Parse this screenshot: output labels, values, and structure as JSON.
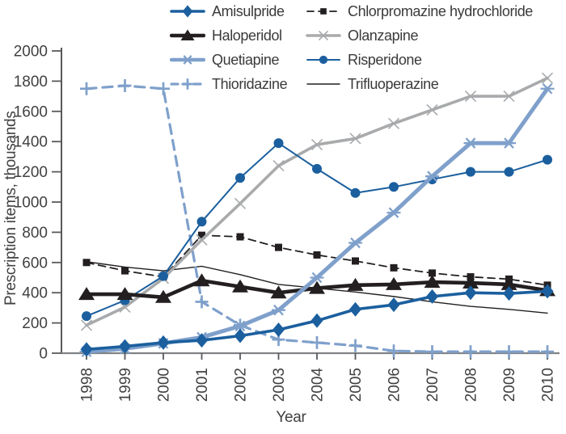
{
  "chart_data": {
    "type": "line",
    "title": "",
    "ylabel": "Prescription items, thousands",
    "xlabel": "Year",
    "x": [
      1998,
      1999,
      2000,
      2001,
      2002,
      2003,
      2004,
      2005,
      2006,
      2007,
      2008,
      2009,
      2010
    ],
    "ylim": [
      0,
      2000
    ],
    "ytick_step": 200,
    "grid": false,
    "legend_position": "top, two columns, overlapping plot",
    "axis_color": "#58595b",
    "tick_text_color": "#414042",
    "series": [
      {
        "name": "Amisulpride",
        "values": [
          25,
          45,
          70,
          85,
          115,
          155,
          215,
          290,
          320,
          375,
          400,
          395,
          410
        ],
        "color": "#1b5f9e",
        "marker": "diamond",
        "dash": "",
        "width": 3.6
      },
      {
        "name": "Chlorpromazine hydrochloride",
        "values": [
          600,
          545,
          505,
          780,
          770,
          700,
          650,
          610,
          565,
          530,
          505,
          490,
          450
        ],
        "color": "#231f20",
        "marker": "square",
        "dash": "9,6",
        "width": 1.8
      },
      {
        "name": "Haloperidol",
        "values": [
          390,
          390,
          370,
          480,
          440,
          400,
          430,
          450,
          455,
          470,
          465,
          455,
          415
        ],
        "color": "#231f20",
        "marker": "triangle",
        "dash": "",
        "width": 4.6
      },
      {
        "name": "Olanzapine",
        "values": [
          185,
          305,
          495,
          750,
          990,
          1240,
          1380,
          1420,
          1520,
          1610,
          1700,
          1700,
          1820
        ],
        "color": "#a8aaac",
        "marker": "x",
        "dash": "",
        "width": 3.6
      },
      {
        "name": "Quetiapine",
        "values": [
          10,
          30,
          65,
          105,
          180,
          285,
          500,
          730,
          930,
          1170,
          1390,
          1390,
          1750
        ],
        "color": "#7fa0cb",
        "marker": "asterisk",
        "dash": "",
        "width": 5
      },
      {
        "name": "Risperidone",
        "values": [
          245,
          350,
          510,
          870,
          1160,
          1390,
          1220,
          1060,
          1100,
          1150,
          1200,
          1200,
          1280
        ],
        "color": "#1b5f9e",
        "marker": "circle",
        "dash": "",
        "width": 2
      },
      {
        "name": "Thioridazine",
        "values": [
          1750,
          1770,
          1750,
          340,
          185,
          90,
          70,
          50,
          15,
          10,
          10,
          10,
          10
        ],
        "color": "#7fa0cb",
        "marker": "plus",
        "dash": "12,8",
        "width": 3.2
      },
      {
        "name": "Trifluoperazine",
        "values": [
          605,
          570,
          545,
          575,
          520,
          455,
          430,
          405,
          375,
          340,
          310,
          290,
          265
        ],
        "color": "#231f20",
        "marker": "none",
        "dash": "",
        "width": 1.4
      }
    ],
    "draw_order": [
      "Trifluoperazine",
      "Chlorpromazine hydrochloride",
      "Thioridazine",
      "Olanzapine",
      "Risperidone",
      "Haloperidol",
      "Quetiapine",
      "Amisulpride"
    ]
  }
}
